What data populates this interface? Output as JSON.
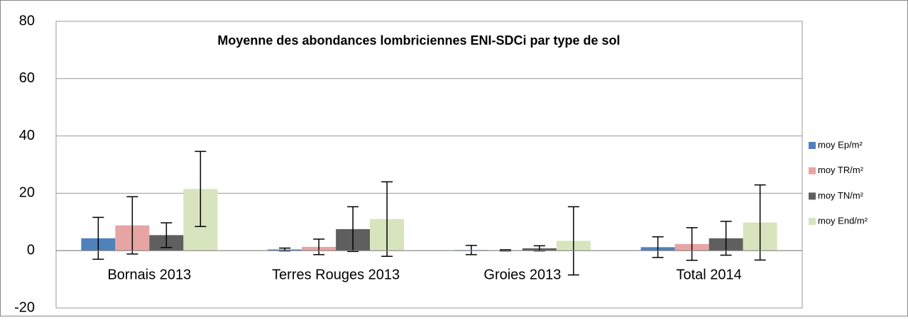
{
  "chart_data": {
    "type": "bar",
    "title": "Moyenne des abondances lombriciennes ENI-SDCi par type de sol",
    "categories": [
      "Bornais 2013",
      "Terres Rouges 2013",
      "Groies  2013",
      "Total  2014"
    ],
    "series": [
      {
        "name": "moy Ep/m²",
        "color": "#4f81bd",
        "values": [
          4.3,
          0.4,
          0.2,
          1.2
        ],
        "errors": [
          7.3,
          0.5,
          1.6,
          3.6
        ]
      },
      {
        "name": "moy TR/m²",
        "color": "#e6a5a3",
        "values": [
          8.8,
          1.3,
          0.1,
          2.3
        ],
        "errors": [
          10,
          2.7,
          0.2,
          5.7
        ]
      },
      {
        "name": "moy TN/m²",
        "color": "#5f5f5f",
        "values": [
          5.4,
          7.5,
          0.8,
          4.3
        ],
        "errors": [
          4.3,
          7.8,
          0.9,
          5.9
        ]
      },
      {
        "name": "moy End/m²",
        "color": "#d7e4bd",
        "values": [
          21.5,
          11,
          3.4,
          9.8
        ],
        "errors": [
          13.1,
          13,
          11.9,
          13.1
        ]
      }
    ],
    "ylim": [
      -20,
      80
    ],
    "yticks": [
      -20,
      0,
      20,
      40,
      60,
      80
    ],
    "grid": true,
    "legend": "right"
  }
}
